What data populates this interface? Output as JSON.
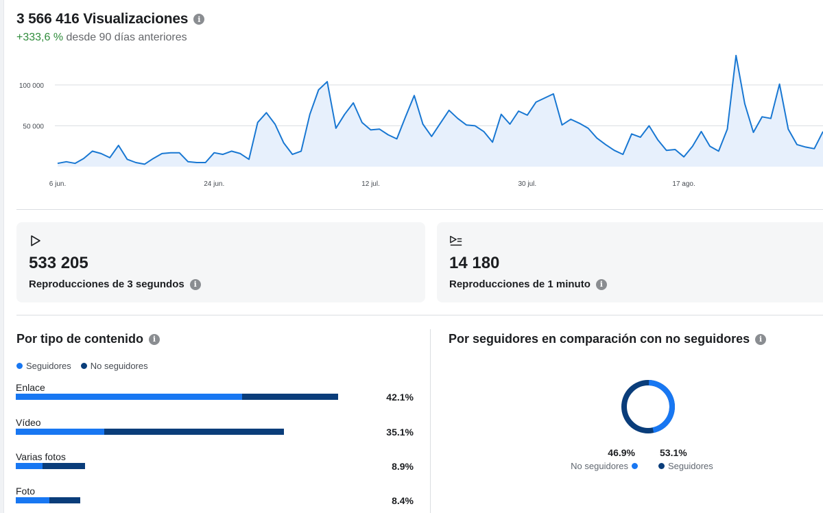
{
  "header": {
    "title": "3 566 416 Visualizaciones",
    "change_pct": "+333,6 %",
    "change_text": "desde 90 días anteriores"
  },
  "colors": {
    "accent": "#1877f2",
    "dark": "#0a3d7a",
    "positive": "#2e8b3a",
    "line": "#1877d2",
    "area": "#e7f0fc"
  },
  "icons": {
    "info": "info-icon",
    "play": "play-icon",
    "play_list": "play-list-icon"
  },
  "chart_data": {
    "type": "area",
    "title": "",
    "xlabel": "",
    "ylabel": "",
    "y_ticks": [
      "100 000",
      "50 000"
    ],
    "y_tick_values": [
      100000,
      50000
    ],
    "x_ticks": [
      "6 jun.",
      "24 jun.",
      "12 jul.",
      "30 jul.",
      "17 ago."
    ],
    "x_tick_index": [
      0,
      18,
      36,
      54,
      72
    ],
    "ylim": [
      0,
      120000
    ],
    "grid": true,
    "values": [
      4000,
      6000,
      4000,
      10000,
      19000,
      16000,
      11000,
      26000,
      9000,
      5000,
      3000,
      10000,
      16000,
      17000,
      17000,
      6000,
      5000,
      5000,
      17000,
      15000,
      19000,
      16000,
      9000,
      54000,
      66000,
      52000,
      29000,
      15000,
      19000,
      64000,
      94000,
      104000,
      47000,
      64000,
      78000,
      54000,
      45000,
      46000,
      39000,
      34000,
      61000,
      87000,
      52000,
      37000,
      53000,
      69000,
      59000,
      51000,
      50000,
      43000,
      30000,
      64000,
      52000,
      68000,
      63000,
      79000,
      84000,
      89000,
      51000,
      58000,
      53000,
      47000,
      35000,
      27000,
      20000,
      15000,
      40000,
      36000,
      50000,
      33000,
      20000,
      21000,
      12000,
      25000,
      43000,
      25000,
      19000,
      46000,
      136000,
      77000,
      42000,
      61000,
      59000,
      101000,
      46000,
      27000,
      24000,
      22000,
      43000
    ]
  },
  "cards": [
    {
      "value": "533 205",
      "label": "Reproducciones de 3 segundos"
    },
    {
      "value": "14 180",
      "label": "Reproducciones de 1 minuto"
    }
  ],
  "content_type": {
    "title": "Por tipo de contenido",
    "legend": [
      "Seguidores",
      "No seguidores"
    ],
    "rows": [
      {
        "label": "Enlace",
        "pct": "42.1%",
        "followers": 0.703,
        "non_followers": 0.297,
        "total_fraction": 0.9
      },
      {
        "label": "Vídeo",
        "pct": "35.1%",
        "followers": 0.33,
        "non_followers": 0.67,
        "total_fraction": 0.75
      },
      {
        "label": "Varias fotos",
        "pct": "8.9%",
        "followers": 0.39,
        "non_followers": 0.61,
        "total_fraction": 0.193
      },
      {
        "label": "Foto",
        "pct": "8.4%",
        "followers": 0.52,
        "non_followers": 0.48,
        "total_fraction": 0.181
      }
    ]
  },
  "followers": {
    "title": "Por seguidores en comparación con no seguidores",
    "non_followers_pct": "46.9%",
    "non_followers_label": "No seguidores",
    "followers_pct": "53.1%",
    "followers_label": "Seguidores",
    "followers_share": 0.531,
    "non_followers_share": 0.469
  }
}
